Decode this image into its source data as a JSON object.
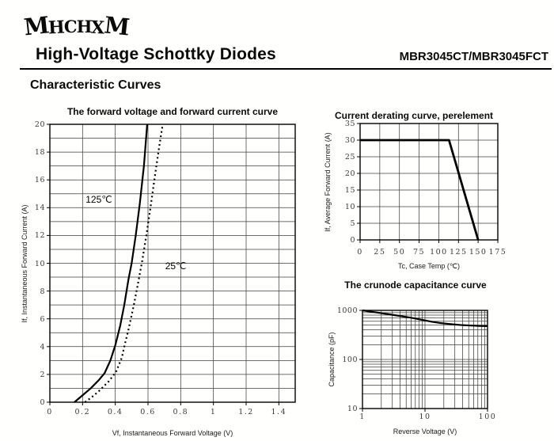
{
  "page": {
    "logo": "MHCHXM",
    "title": "High-Voltage Schottky Diodes",
    "part_number": "MBR3045CT/MBR3045FCT",
    "section_heading": "Characteristic Curves"
  },
  "colors": {
    "curve": "#000000",
    "grid": "#3f3f3f",
    "border": "#000000",
    "tick_text": "#3a3a3a",
    "background": "#fffffe"
  },
  "chart_data": [
    {
      "id": "forward",
      "type": "line",
      "title": "The forward voltage and forward current curve",
      "xlabel": "Vf, Instantaneous Forward Voltage (V)",
      "ylabel": "If, Instantaneous Forward Current (A)",
      "xscale": "linear",
      "yscale": "linear",
      "xlim": [
        0,
        1.5
      ],
      "ylim": [
        0,
        20
      ],
      "xticks": {
        "values": [
          0,
          0.2,
          0.4,
          0.6,
          0.8,
          1,
          1.2,
          1.4
        ],
        "labels": [
          "0",
          "0.2",
          "0.4",
          "0.6",
          "0.8",
          "1",
          "1.2",
          "1.4"
        ]
      },
      "yticks": {
        "values": [
          0,
          2,
          4,
          6,
          8,
          10,
          12,
          14,
          16,
          18,
          20
        ],
        "labels": [
          "0",
          "2",
          "4",
          "6",
          "8",
          "10",
          "12",
          "14",
          "16",
          "18",
          "20"
        ]
      },
      "xgrid": [
        0.2,
        0.4,
        0.6,
        0.8,
        1.0,
        1.2,
        1.4
      ],
      "ygrid": [
        1,
        2,
        3,
        4,
        5,
        6,
        7,
        8,
        9,
        10,
        11,
        12,
        13,
        14,
        15,
        16,
        17,
        18,
        19
      ],
      "grid": true,
      "legend_position": "none",
      "series": [
        {
          "name": "125℃",
          "line": "solid",
          "points": [
            [
              0.15,
              0
            ],
            [
              0.19,
              0.4
            ],
            [
              0.25,
              1.0
            ],
            [
              0.3,
              1.6
            ],
            [
              0.335,
              2.1
            ],
            [
              0.37,
              3.0
            ],
            [
              0.4,
              4.1
            ],
            [
              0.43,
              5.5
            ],
            [
              0.455,
              7.0
            ],
            [
              0.48,
              8.8
            ],
            [
              0.5,
              10.0
            ],
            [
              0.525,
              12.0
            ],
            [
              0.55,
              14.3
            ],
            [
              0.575,
              17.0
            ],
            [
              0.595,
              20.0
            ]
          ]
        },
        {
          "name": "25℃",
          "line": "dotted",
          "points": [
            [
              0.215,
              0
            ],
            [
              0.26,
              0.4
            ],
            [
              0.3,
              0.8
            ],
            [
              0.36,
              1.5
            ],
            [
              0.405,
              2.2
            ],
            [
              0.44,
              3.2
            ],
            [
              0.455,
              4.0
            ],
            [
              0.48,
              5.2
            ],
            [
              0.51,
              6.8
            ],
            [
              0.535,
              8.3
            ],
            [
              0.565,
              10.2
            ],
            [
              0.59,
              12.0
            ],
            [
              0.615,
              14.0
            ],
            [
              0.645,
              16.5
            ],
            [
              0.67,
              18.5
            ],
            [
              0.69,
              20.0
            ]
          ]
        }
      ],
      "annotations": [
        {
          "text": "125℃",
          "x": 0.3,
          "y": 14.6
        },
        {
          "text": "25℃",
          "x": 0.77,
          "y": 9.8
        }
      ]
    },
    {
      "id": "derating",
      "type": "line",
      "title": "Current derating curve, perelement",
      "xlabel": "Tc, Case Temp (℃)",
      "ylabel": "If, Average Forward Current (A)",
      "xscale": "linear",
      "yscale": "linear",
      "xlim": [
        0,
        175
      ],
      "ylim": [
        0,
        35
      ],
      "xticks": {
        "values": [
          0,
          25,
          50,
          75,
          100,
          125,
          150,
          175
        ],
        "labels": [
          "0",
          "25",
          "50",
          "75",
          "100",
          "125",
          "150",
          "175"
        ]
      },
      "yticks": {
        "values": [
          0,
          5,
          10,
          15,
          20,
          25,
          30,
          35
        ],
        "labels": [
          "0",
          "5",
          "10",
          "15",
          "20",
          "25",
          "30",
          "35"
        ]
      },
      "xgrid": [
        25,
        50,
        75,
        100,
        125,
        150
      ],
      "ygrid": [
        5,
        10,
        15,
        20,
        25,
        30
      ],
      "grid": true,
      "legend_position": "none",
      "series": [
        {
          "name": "derating",
          "line": "solid",
          "points": [
            [
              0,
              30
            ],
            [
              113,
              30
            ],
            [
              150,
              0
            ]
          ]
        }
      ],
      "annotations": []
    },
    {
      "id": "capacitance",
      "type": "line",
      "title": "The crunode capacitance curve",
      "xlabel": "Reverse Voltage (V)",
      "ylabel": "Capacitance (pF)",
      "xscale": "log",
      "yscale": "log",
      "xlim": [
        1,
        100
      ],
      "ylim": [
        10,
        1000
      ],
      "xticks": {
        "values": [
          1,
          10,
          100
        ],
        "labels": [
          "1",
          "10",
          "100"
        ]
      },
      "yticks": {
        "values": [
          10,
          100,
          1000
        ],
        "labels": [
          "10",
          "100",
          "1000"
        ]
      },
      "xgrid": [
        2,
        3,
        4,
        5,
        6,
        7,
        8,
        9,
        10,
        20,
        30,
        40,
        50,
        60,
        70,
        80,
        90
      ],
      "ygrid": [
        20,
        30,
        40,
        50,
        60,
        70,
        80,
        90,
        100,
        200,
        300,
        400,
        500,
        600,
        700,
        800,
        900
      ],
      "grid": true,
      "legend_position": "none",
      "series": [
        {
          "name": "capacitance",
          "line": "solid",
          "points": [
            [
              1,
              1000
            ],
            [
              1.3,
              950
            ],
            [
              1.7,
              905
            ],
            [
              2.2,
              862
            ],
            [
              3,
              812
            ],
            [
              4,
              768
            ],
            [
              5,
              735
            ],
            [
              6.5,
              695
            ],
            [
              8,
              660
            ],
            [
              10,
              625
            ],
            [
              13,
              585
            ],
            [
              17,
              555
            ],
            [
              22,
              535
            ],
            [
              30,
              515
            ],
            [
              40,
              500
            ],
            [
              55,
              490
            ],
            [
              75,
              483
            ],
            [
              100,
              478
            ]
          ]
        }
      ],
      "annotations": []
    }
  ]
}
